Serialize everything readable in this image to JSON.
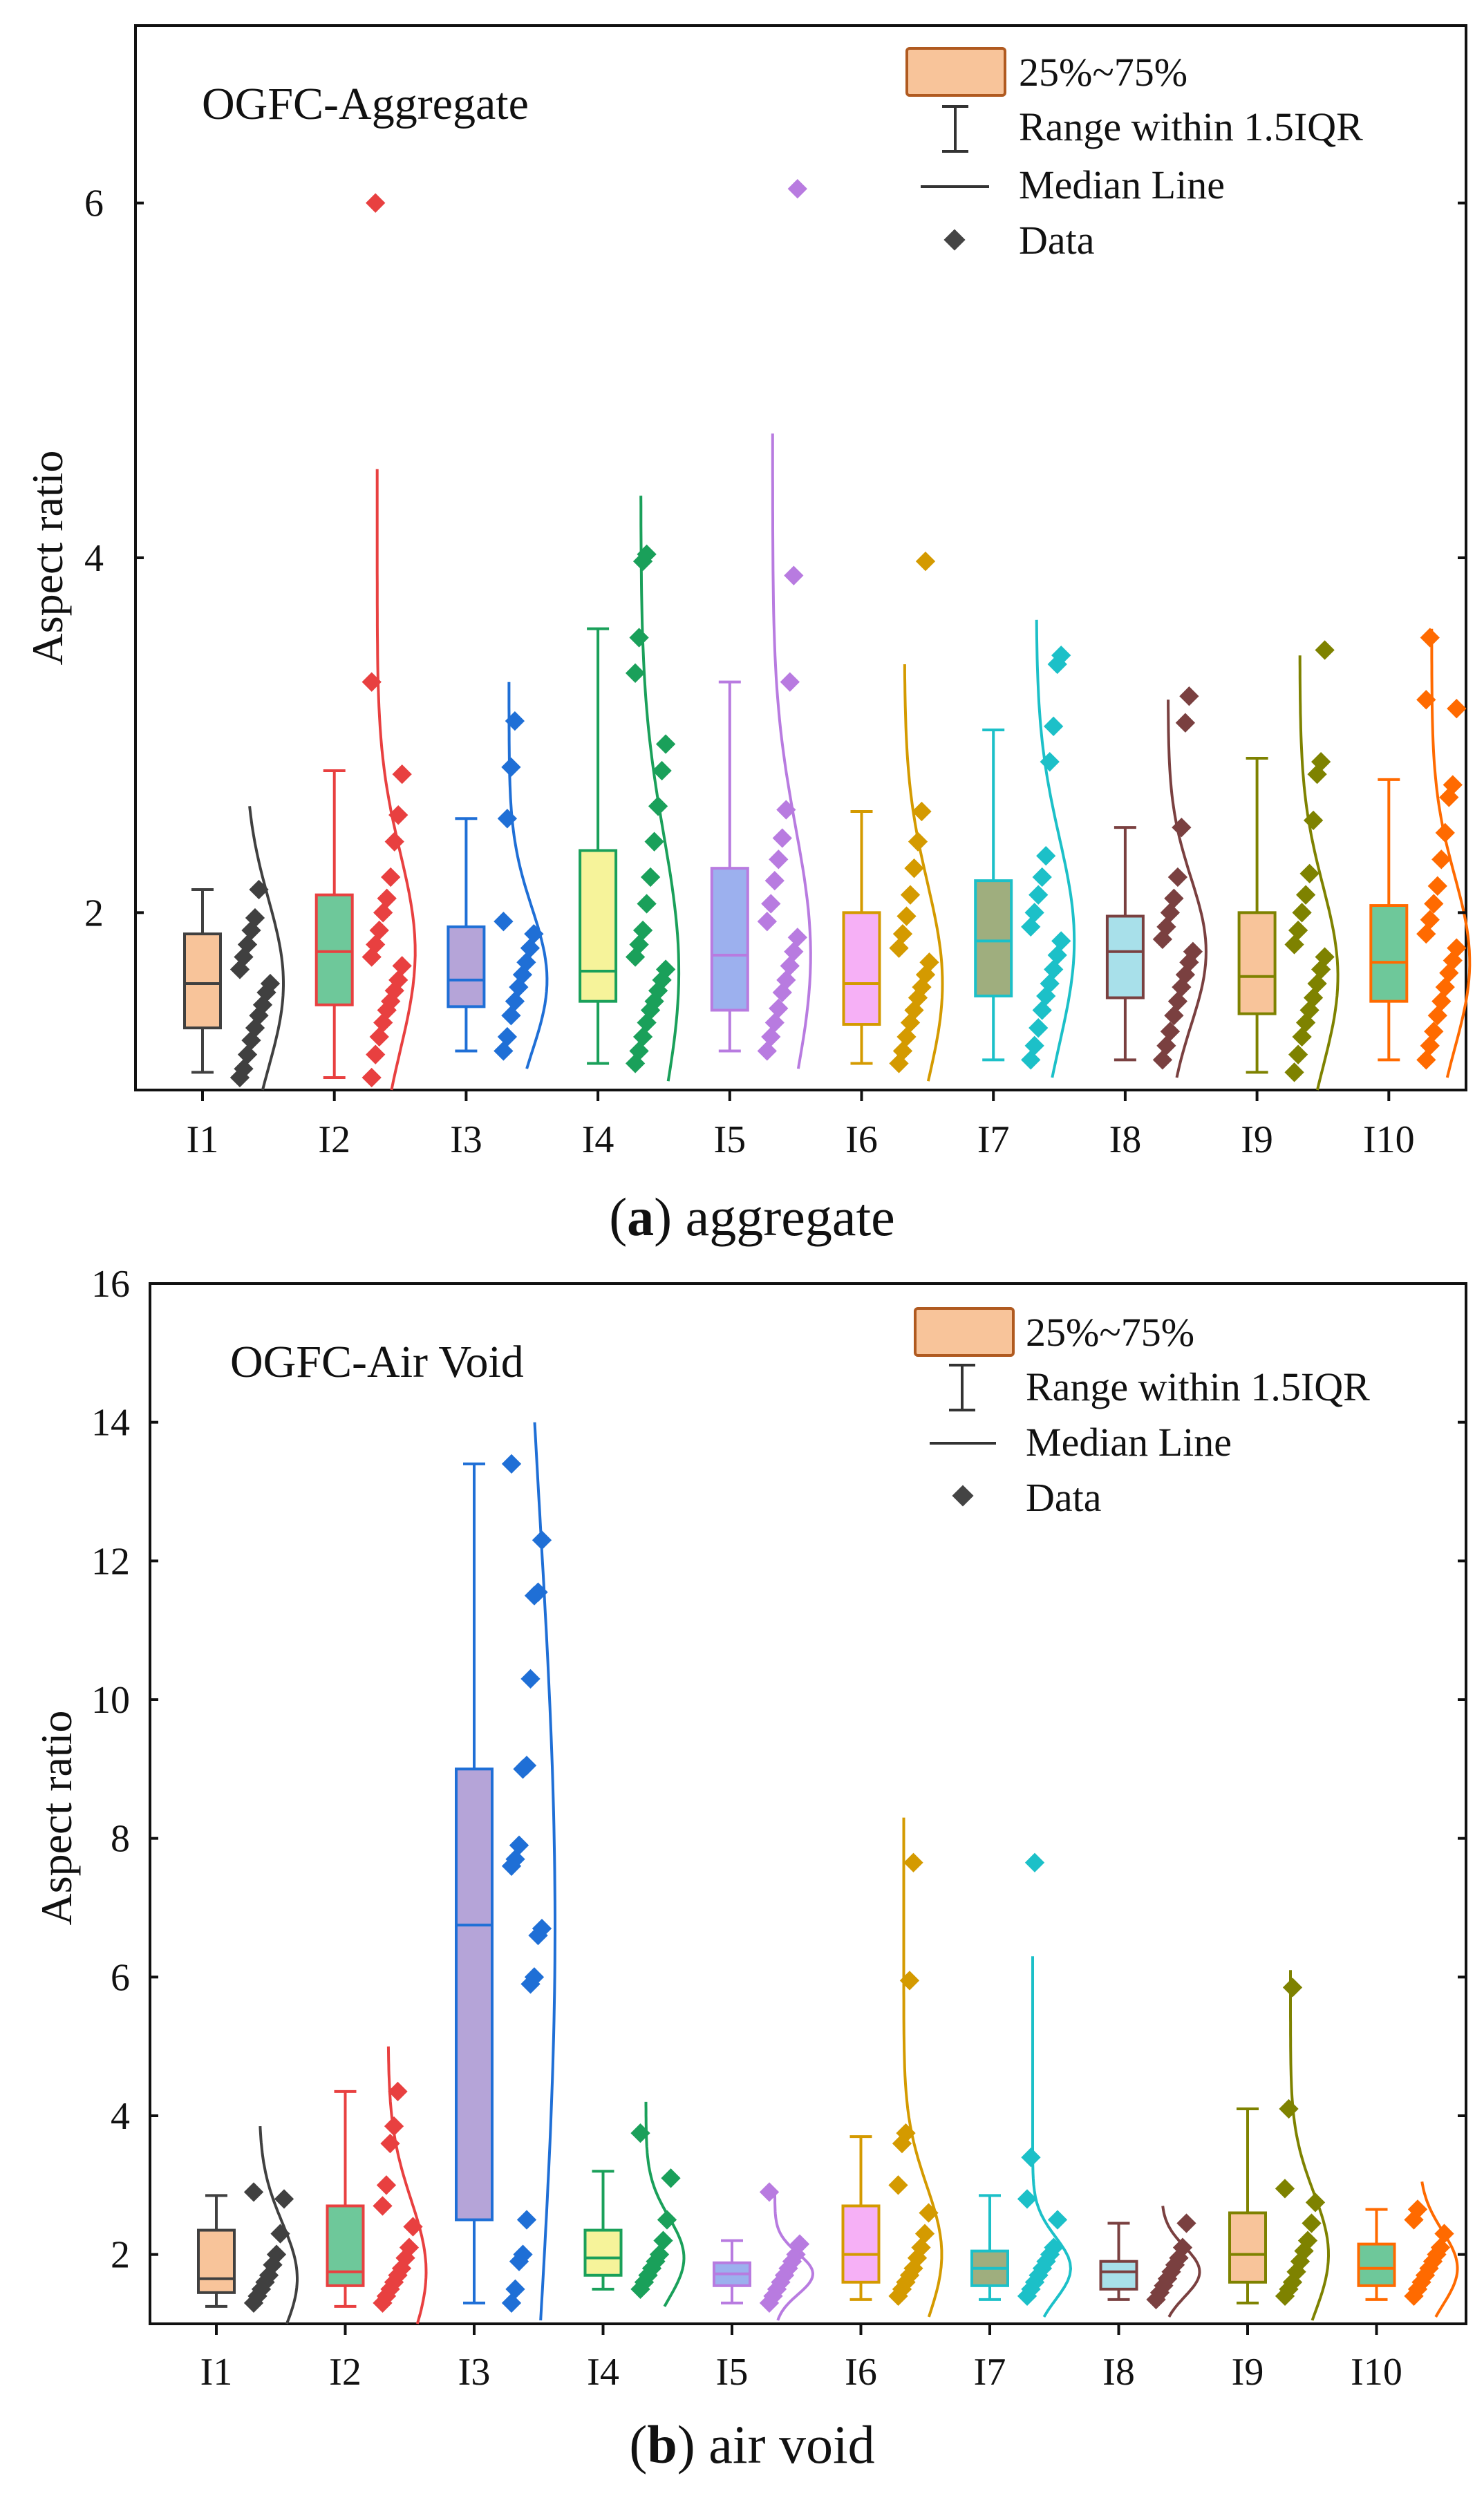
{
  "legend": {
    "box_label": "25%~75%",
    "whisker_label": "Range within 1.5IQR",
    "median_label": "Median Line",
    "data_label": "Data"
  },
  "chart_data": [
    {
      "type": "box-violin",
      "title": "OGFC-Aggregate",
      "caption_letter": "a",
      "caption_text": " aggregate",
      "xlabel": "",
      "ylabel": "Aspect ratio",
      "ylim": [
        1.0,
        7.0
      ],
      "yticks": [
        2,
        4,
        6
      ],
      "ytick_labels": [
        "2",
        "4",
        "6"
      ],
      "categories": [
        "I1",
        "I2",
        "I3",
        "I4",
        "I5",
        "I6",
        "I7",
        "I8",
        "I9",
        "I10"
      ],
      "series": [
        {
          "name": "I1",
          "color": "#404040",
          "fill": "#f8c49a",
          "q1": 1.35,
          "median": 1.6,
          "q3": 1.88,
          "whisker_low": 1.1,
          "whisker_high": 2.13,
          "dist_top": 2.6,
          "points": [
            1.07,
            1.12,
            1.2,
            1.28,
            1.35,
            1.42,
            1.48,
            1.55,
            1.6,
            1.68,
            1.75,
            1.82,
            1.9,
            1.97,
            2.13
          ]
        },
        {
          "name": "I2",
          "color": "#e84040",
          "fill": "#6ec89a",
          "q1": 1.48,
          "median": 1.78,
          "q3": 2.1,
          "whisker_low": 1.07,
          "whisker_high": 2.8,
          "dist_top": 4.5,
          "points": [
            1.07,
            1.2,
            1.3,
            1.38,
            1.45,
            1.5,
            1.56,
            1.62,
            1.7,
            1.75,
            1.82,
            1.9,
            2.0,
            2.08,
            2.2,
            2.4,
            2.55,
            2.78,
            3.3,
            6.0
          ]
        },
        {
          "name": "I3",
          "color": "#1f6fd6",
          "fill": "#b5a4d8",
          "q1": 1.47,
          "median": 1.62,
          "q3": 1.92,
          "whisker_low": 1.22,
          "whisker_high": 2.53,
          "dist_top": 3.3,
          "points": [
            1.22,
            1.3,
            1.42,
            1.5,
            1.58,
            1.65,
            1.72,
            1.8,
            1.88,
            1.95,
            2.53,
            2.82,
            3.08
          ]
        },
        {
          "name": "I4",
          "color": "#1aa05a",
          "fill": "#f6f39a",
          "q1": 1.5,
          "median": 1.67,
          "q3": 2.35,
          "whisker_low": 1.15,
          "whisker_high": 3.6,
          "dist_top": 4.35,
          "points": [
            1.15,
            1.22,
            1.3,
            1.38,
            1.45,
            1.5,
            1.56,
            1.62,
            1.68,
            1.75,
            1.82,
            1.9,
            2.05,
            2.2,
            2.4,
            2.6,
            2.8,
            2.95,
            3.35,
            3.55,
            3.98,
            4.02
          ]
        },
        {
          "name": "I5",
          "color": "#b87be0",
          "fill": "#9cb0ee",
          "q1": 1.45,
          "median": 1.76,
          "q3": 2.25,
          "whisker_low": 1.22,
          "whisker_high": 3.3,
          "dist_top": 4.7,
          "points": [
            1.22,
            1.3,
            1.38,
            1.46,
            1.55,
            1.62,
            1.7,
            1.78,
            1.86,
            1.95,
            2.05,
            2.18,
            2.3,
            2.42,
            2.58,
            3.3,
            3.9,
            6.08
          ]
        },
        {
          "name": "I6",
          "color": "#d49a00",
          "fill": "#f6b0f6",
          "q1": 1.37,
          "median": 1.6,
          "q3": 2.0,
          "whisker_low": 1.15,
          "whisker_high": 2.57,
          "dist_top": 3.4,
          "points": [
            1.15,
            1.22,
            1.3,
            1.38,
            1.45,
            1.52,
            1.58,
            1.65,
            1.72,
            1.8,
            1.88,
            1.98,
            2.1,
            2.25,
            2.4,
            2.57,
            3.98
          ]
        },
        {
          "name": "I7",
          "color": "#1cc0c8",
          "fill": "#9fae7e",
          "q1": 1.53,
          "median": 1.84,
          "q3": 2.18,
          "whisker_low": 1.17,
          "whisker_high": 3.03,
          "dist_top": 3.65,
          "points": [
            1.17,
            1.25,
            1.35,
            1.45,
            1.53,
            1.6,
            1.68,
            1.76,
            1.84,
            1.92,
            2.0,
            2.1,
            2.2,
            2.32,
            2.85,
            3.05,
            3.4,
            3.45
          ]
        },
        {
          "name": "I8",
          "color": "#7a4040",
          "fill": "#a8e0ea",
          "q1": 1.52,
          "median": 1.78,
          "q3": 1.98,
          "whisker_low": 1.17,
          "whisker_high": 2.48,
          "dist_top": 3.2,
          "points": [
            1.17,
            1.25,
            1.33,
            1.42,
            1.5,
            1.58,
            1.65,
            1.72,
            1.78,
            1.85,
            1.92,
            2.0,
            2.08,
            2.2,
            2.48,
            3.07,
            3.22
          ]
        },
        {
          "name": "I9",
          "color": "#7e8200",
          "fill": "#f8c49a",
          "q1": 1.43,
          "median": 1.64,
          "q3": 2.0,
          "whisker_low": 1.1,
          "whisker_high": 2.87,
          "dist_top": 3.45,
          "points": [
            1.1,
            1.2,
            1.3,
            1.38,
            1.45,
            1.52,
            1.6,
            1.68,
            1.75,
            1.82,
            1.9,
            2.0,
            2.1,
            2.22,
            2.52,
            2.78,
            2.85,
            3.48
          ]
        },
        {
          "name": "I10",
          "color": "#ff6a00",
          "fill": "#6ec89a",
          "q1": 1.5,
          "median": 1.72,
          "q3": 2.04,
          "whisker_low": 1.17,
          "whisker_high": 2.75,
          "dist_top": 3.6,
          "points": [
            1.17,
            1.25,
            1.33,
            1.42,
            1.5,
            1.58,
            1.66,
            1.73,
            1.8,
            1.88,
            1.96,
            2.05,
            2.15,
            2.3,
            2.45,
            2.65,
            2.72,
            3.15,
            3.2,
            3.55
          ]
        }
      ]
    },
    {
      "type": "box-violin",
      "title": "OGFC-Air Void",
      "caption_letter": "b",
      "caption_text": " air void",
      "xlabel": "",
      "ylabel": "Aspect ratio",
      "ylim": [
        1.0,
        16.0
      ],
      "yticks": [
        2,
        4,
        6,
        8,
        10,
        12,
        14,
        16
      ],
      "ytick_labels": [
        "2",
        "4",
        "6",
        "8",
        "10",
        "12",
        "14",
        "16"
      ],
      "categories": [
        "I1",
        "I2",
        "I3",
        "I4",
        "I5",
        "I6",
        "I7",
        "I8",
        "I9",
        "I10"
      ],
      "series": [
        {
          "name": "I1",
          "color": "#404040",
          "fill": "#f8c49a",
          "q1": 1.45,
          "median": 1.65,
          "q3": 2.35,
          "whisker_low": 1.25,
          "whisker_high": 2.85,
          "dist_top": 3.85,
          "points": [
            1.3,
            1.4,
            1.5,
            1.6,
            1.7,
            1.85,
            2.0,
            2.3,
            2.8,
            2.9
          ]
        },
        {
          "name": "I2",
          "color": "#e84040",
          "fill": "#6ec89a",
          "q1": 1.55,
          "median": 1.75,
          "q3": 2.7,
          "whisker_low": 1.25,
          "whisker_high": 4.35,
          "dist_top": 5.0,
          "points": [
            1.3,
            1.4,
            1.5,
            1.6,
            1.7,
            1.8,
            1.95,
            2.1,
            2.4,
            2.7,
            3.0,
            3.6,
            3.85,
            4.35
          ]
        },
        {
          "name": "I3",
          "color": "#1f6fd6",
          "fill": "#b5a4d8",
          "q1": 2.5,
          "median": 6.75,
          "q3": 9.0,
          "whisker_low": 1.3,
          "whisker_high": 13.4,
          "dist_top": 14.0,
          "points": [
            1.3,
            1.5,
            1.9,
            2.0,
            2.5,
            5.9,
            6.0,
            6.6,
            6.7,
            7.6,
            7.7,
            7.9,
            9.0,
            9.05,
            10.3,
            11.5,
            11.55,
            12.3,
            13.4
          ]
        },
        {
          "name": "I4",
          "color": "#1aa05a",
          "fill": "#f6f39a",
          "q1": 1.7,
          "median": 1.95,
          "q3": 2.35,
          "whisker_low": 1.5,
          "whisker_high": 3.2,
          "dist_top": 4.2,
          "points": [
            1.5,
            1.6,
            1.7,
            1.8,
            1.9,
            2.0,
            2.2,
            2.5,
            3.1,
            3.75
          ]
        },
        {
          "name": "I5",
          "color": "#b87be0",
          "fill": "#9cb0ee",
          "q1": 1.55,
          "median": 1.72,
          "q3": 1.88,
          "whisker_low": 1.3,
          "whisker_high": 2.2,
          "dist_top": 2.9,
          "points": [
            1.3,
            1.4,
            1.5,
            1.6,
            1.7,
            1.8,
            1.9,
            2.0,
            2.15,
            2.9
          ]
        },
        {
          "name": "I6",
          "color": "#d49a00",
          "fill": "#f6b0f6",
          "q1": 1.6,
          "median": 2.0,
          "q3": 2.7,
          "whisker_low": 1.35,
          "whisker_high": 3.7,
          "dist_top": 8.3,
          "points": [
            1.4,
            1.5,
            1.6,
            1.7,
            1.8,
            1.95,
            2.1,
            2.3,
            2.6,
            3.0,
            3.6,
            3.75,
            5.95,
            7.65
          ]
        },
        {
          "name": "I7",
          "color": "#1cc0c8",
          "fill": "#9fae7e",
          "q1": 1.55,
          "median": 1.8,
          "q3": 2.05,
          "whisker_low": 1.35,
          "whisker_high": 2.85,
          "dist_top": 6.3,
          "points": [
            1.4,
            1.5,
            1.6,
            1.7,
            1.8,
            1.9,
            2.0,
            2.1,
            2.5,
            2.8,
            3.4,
            7.65
          ]
        },
        {
          "name": "I8",
          "color": "#7a4040",
          "fill": "#a8e0ea",
          "q1": 1.5,
          "median": 1.75,
          "q3": 1.9,
          "whisker_low": 1.35,
          "whisker_high": 2.45,
          "dist_top": 2.7,
          "points": [
            1.35,
            1.45,
            1.55,
            1.65,
            1.75,
            1.85,
            1.95,
            2.1,
            2.45
          ]
        },
        {
          "name": "I9",
          "color": "#7e8200",
          "fill": "#f8c49a",
          "q1": 1.6,
          "median": 2.0,
          "q3": 2.6,
          "whisker_low": 1.3,
          "whisker_high": 4.1,
          "dist_top": 6.1,
          "points": [
            1.4,
            1.5,
            1.6,
            1.75,
            1.9,
            2.05,
            2.2,
            2.45,
            2.75,
            2.95,
            4.1,
            5.85
          ]
        },
        {
          "name": "I10",
          "color": "#ff6a00",
          "fill": "#6ec89a",
          "q1": 1.55,
          "median": 1.8,
          "q3": 2.15,
          "whisker_low": 1.35,
          "whisker_high": 2.65,
          "dist_top": 3.05,
          "points": [
            1.4,
            1.5,
            1.6,
            1.7,
            1.8,
            1.9,
            2.0,
            2.1,
            2.3,
            2.5,
            2.65
          ]
        }
      ]
    }
  ]
}
